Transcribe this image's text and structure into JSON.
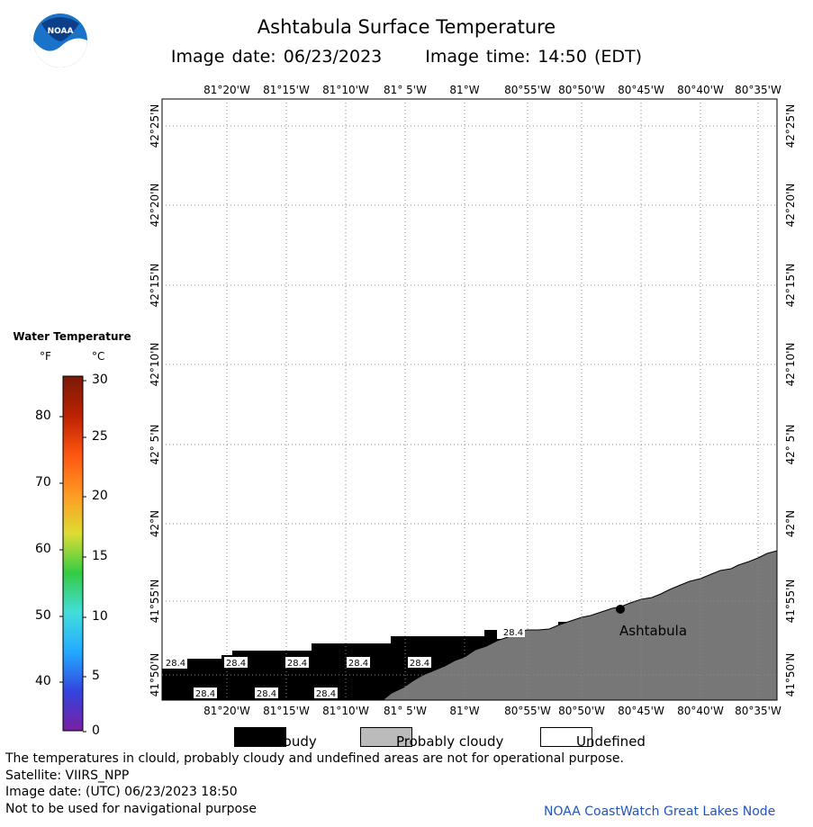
{
  "header": {
    "title": "Ashtabula Surface Temperature",
    "image_date": "Image date: 06/23/2023",
    "image_time": "Image time: 14:50 (EDT)",
    "logo_text": "NOAA"
  },
  "map": {
    "lon_labels": [
      "81°20'W",
      "81°15'W",
      "81°10'W",
      "81° 5'W",
      "81°W",
      "80°55'W",
      "80°50'W",
      "80°45'W",
      "80°40'W",
      "80°35'W"
    ],
    "lat_labels": [
      "41°50'N",
      "41°55'N",
      "42°N",
      "42° 5'N",
      "42°10'N",
      "42°15'N",
      "42°20'N",
      "42°25'N"
    ],
    "city_label": "Ashtabula",
    "temperature_labels": [
      "28.4",
      "28.4",
      "28.4",
      "28.4",
      "28.4",
      "28.4",
      "28.4",
      "28.4",
      "28.4"
    ],
    "colors": {
      "land": "#777777",
      "cloud": "#000000",
      "grid": "#888888"
    }
  },
  "legend": {
    "title": "Water Temperature",
    "unit_f": "°F",
    "unit_c": "°C",
    "f_labels": [
      "80",
      "70",
      "60",
      "50",
      "40"
    ],
    "c_labels": [
      "30",
      "25",
      "20",
      "15",
      "10",
      "5",
      "0"
    ],
    "colors": [
      "#7a1fa2",
      "#3344dd",
      "#22aaff",
      "#44dddd",
      "#33cc44",
      "#dddd33",
      "#ff9922",
      "#ff5511",
      "#bb2200",
      "#7a1a08"
    ]
  },
  "key": {
    "cloudy": "Cloudy",
    "probably_cloudy": "Probably cloudy",
    "undefined": "Undefined"
  },
  "footer": {
    "line1": "The temperatures in clould, probably cloudy and undefined areas are not for operational purpose.",
    "line2": "Satellite: VIIRS_NPP",
    "line3": "Image date: (UTC) 06/23/2023  18:50",
    "line4": "Not to be used for navigational purpose",
    "credit": "NOAA CoastWatch Great Lakes Node"
  }
}
